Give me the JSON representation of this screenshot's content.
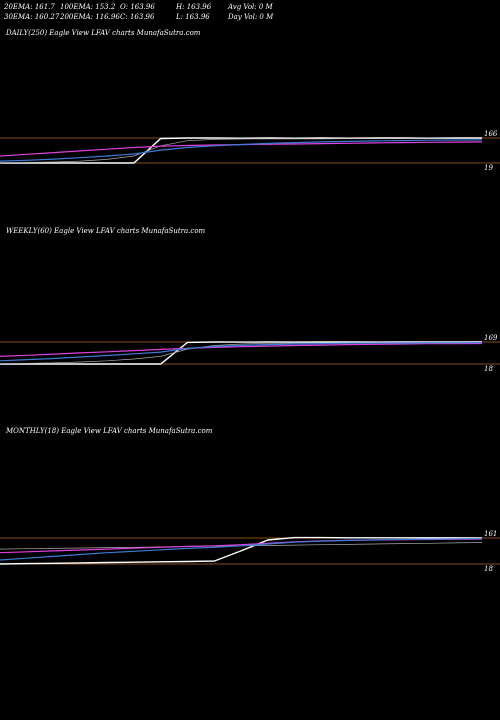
{
  "stats": {
    "row1": [
      {
        "label": "20EMA: 161.7"
      },
      {
        "label": "100EMA: 153.2"
      },
      {
        "label": "O: 163.96"
      },
      {
        "label": "H: 163.96"
      },
      {
        "label": "Avg Vol: 0  M"
      }
    ],
    "row2": [
      {
        "label": "30EMA: 160.27"
      },
      {
        "label": "200EMA: 116.96"
      },
      {
        "label": "C: 163.96"
      },
      {
        "label": "L: 163.96"
      },
      {
        "label": "Day Vol: 0  M"
      }
    ]
  },
  "colors": {
    "background": "#000000",
    "price": "#ffffff",
    "ema_blue": "#3a7bd5",
    "ema_magenta": "#e040e0",
    "ema_orange": "#c87a2a",
    "level_line": "#b3641e",
    "ema_grey": "#aaaaaa"
  },
  "chart_data": [
    {
      "type": "line",
      "title": "DAILY(250) Eagle   View  LFAV charts MunafaSutra.com",
      "y_labels": [
        "166",
        "19"
      ],
      "levels": [
        166,
        19
      ],
      "series": [
        {
          "values": [
            19,
            19,
            19,
            19,
            19,
            19,
            163,
            166,
            166,
            165,
            166,
            165,
            166,
            165,
            166,
            166,
            165,
            166,
            166
          ]
        },
        {
          "values": [
            20,
            22,
            25,
            30,
            40,
            60,
            120,
            150,
            158,
            160,
            161,
            161,
            161,
            162,
            162,
            162,
            162,
            162,
            162
          ]
        },
        {
          "values": [
            60,
            70,
            80,
            90,
            100,
            110,
            118,
            122,
            125,
            127,
            129,
            131,
            133,
            135,
            137,
            139,
            141,
            142,
            143
          ]
        },
        {
          "values": [
            30,
            35,
            42,
            50,
            60,
            72,
            95,
            110,
            120,
            128,
            134,
            139,
            143,
            146,
            149,
            151,
            153,
            154,
            155
          ]
        }
      ]
    },
    {
      "type": "line",
      "title": "WEEKLY(60) Eagle   View  LFAV charts MunafaSutra.com",
      "y_labels": [
        "169",
        "18"
      ],
      "levels": [
        169,
        18
      ],
      "series": [
        {
          "values": [
            18,
            18,
            18,
            18,
            18,
            18,
            18,
            166,
            169,
            168,
            169,
            168,
            169,
            169,
            168,
            169,
            169,
            169,
            169
          ]
        },
        {
          "values": [
            20,
            22,
            26,
            32,
            40,
            52,
            70,
            120,
            145,
            155,
            160,
            162,
            163,
            164,
            164,
            165,
            165,
            165,
            165
          ]
        },
        {
          "values": [
            70,
            78,
            86,
            94,
            102,
            110,
            118,
            126,
            132,
            137,
            141,
            145,
            148,
            151,
            153,
            155,
            157,
            158,
            159
          ]
        },
        {
          "values": [
            40,
            48,
            56,
            66,
            76,
            88,
            100,
            125,
            138,
            146,
            151,
            155,
            158,
            160,
            161,
            162,
            163,
            163,
            164
          ]
        }
      ]
    },
    {
      "type": "line",
      "title": "MONTHLY(18) Eagle   View  LFAV charts MunafaSutra.com",
      "y_labels": [
        "161",
        "18"
      ],
      "levels": [
        161,
        18
      ],
      "series": [
        {
          "values": [
            18,
            20,
            22,
            24,
            26,
            28,
            30,
            32,
            34,
            90,
            150,
            163,
            163,
            162,
            162,
            162,
            162,
            162,
            161
          ]
        },
        {
          "values": [
            100,
            102,
            104,
            106,
            108,
            110,
            112,
            114,
            116,
            118,
            120,
            122,
            124,
            126,
            128,
            130,
            132,
            134,
            136
          ]
        },
        {
          "values": [
            80,
            85,
            90,
            95,
            100,
            105,
            110,
            115,
            118,
            124,
            132,
            140,
            145,
            148,
            150,
            152,
            153,
            154,
            155
          ]
        },
        {
          "values": [
            40,
            50,
            60,
            70,
            80,
            88,
            96,
            104,
            110,
            118,
            128,
            138,
            144,
            148,
            151,
            153,
            155,
            156,
            157
          ]
        }
      ]
    }
  ]
}
